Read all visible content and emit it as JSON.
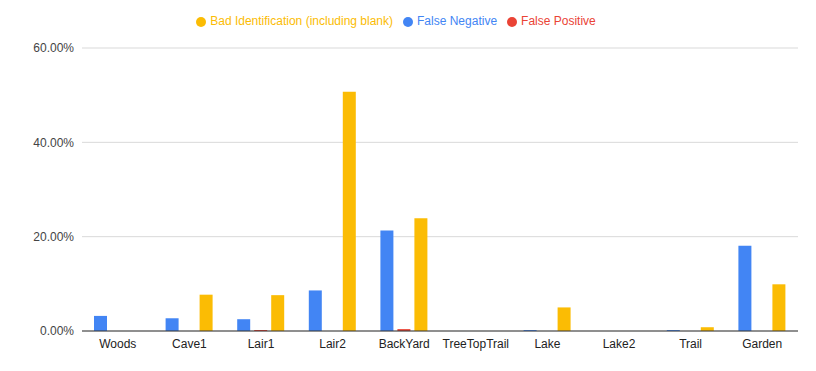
{
  "chart_data": {
    "type": "bar",
    "categories": [
      "Woods",
      "Cave1",
      "Lair1",
      "Lair2",
      "BackYard",
      "TreeTopTrail",
      "Lake",
      "Lake2",
      "Trail",
      "Garden"
    ],
    "series": [
      {
        "name": "False Negative",
        "color": "#4285f4",
        "values": [
          3.2,
          2.7,
          2.5,
          8.6,
          21.3,
          0,
          0.2,
          0,
          0.2,
          18.1
        ]
      },
      {
        "name": "False Positive",
        "color": "#ea4335",
        "values": [
          0,
          0,
          0.2,
          0,
          0.4,
          0,
          0,
          0,
          0,
          0
        ]
      },
      {
        "name": "Bad Identification (including blank)",
        "color": "#fbbc04",
        "values": [
          0,
          7.7,
          7.6,
          50.7,
          23.9,
          0,
          5.0,
          0,
          0.8,
          9.9
        ]
      }
    ],
    "ylim": [
      0,
      60
    ],
    "yticks": [
      {
        "value": 0,
        "label": "0.00%"
      },
      {
        "value": 20,
        "label": "20.00%"
      },
      {
        "value": 40,
        "label": "40.00%"
      },
      {
        "value": 60,
        "label": "60.00%"
      }
    ],
    "grid": true,
    "legend": "top"
  }
}
